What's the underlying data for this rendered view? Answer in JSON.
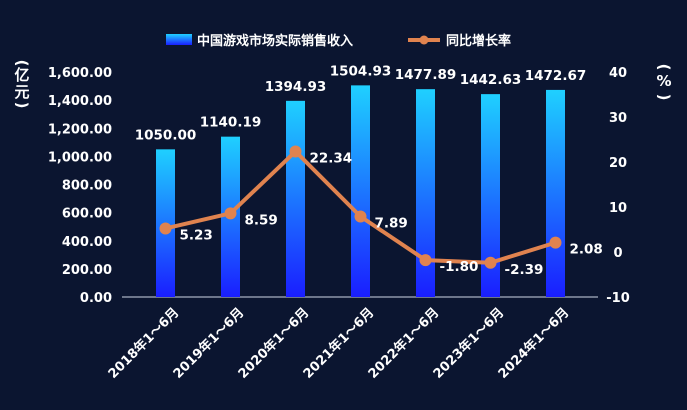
{
  "chart_data": {
    "type": "bar+line",
    "categories": [
      "2018年1～6月",
      "2019年1～6月",
      "2020年1～6月",
      "2021年1～6月",
      "2022年1～6月",
      "2023年1～6月",
      "2024年1～6月"
    ],
    "series": [
      {
        "name": "中国游戏市场实际销售收入",
        "type": "bar",
        "axis": "left",
        "values": [
          1050.0,
          1140.19,
          1394.93,
          1504.93,
          1477.89,
          1442.63,
          1472.67
        ],
        "labels": [
          "1050.00",
          "1140.19",
          "1394.93",
          "1504.93",
          "1477.89",
          "1442.63",
          "1472.67"
        ]
      },
      {
        "name": "同比增长率",
        "type": "line",
        "axis": "right",
        "values": [
          5.23,
          8.59,
          22.34,
          7.89,
          -1.8,
          -2.39,
          2.08
        ],
        "labels": [
          "5.23",
          "8.59",
          "22.34",
          "7.89",
          "-1.80",
          "-2.39",
          "2.08"
        ]
      }
    ],
    "y_left": {
      "label": "亿元",
      "label_chars": [
        "(",
        "亿",
        "元",
        ")"
      ],
      "ylim": [
        0,
        1600
      ],
      "ticks": [
        "1,600.00",
        "1,400.00",
        "1,200.00",
        "1,000.00",
        "800.00",
        "600.00",
        "400.00",
        "200.00",
        "0.00"
      ],
      "tick_values": [
        1600,
        1400,
        1200,
        1000,
        800,
        600,
        400,
        200,
        0
      ]
    },
    "y_right": {
      "label": "%",
      "label_chars": [
        "(",
        "%",
        ")"
      ],
      "ylim": [
        -10,
        40
      ],
      "ticks": [
        "40",
        "30",
        "20",
        "10",
        "0",
        "-10"
      ],
      "tick_values": [
        40,
        30,
        20,
        10,
        0,
        -10
      ]
    },
    "legend": {
      "placement": "top"
    },
    "grid": false,
    "colors": {
      "background": "#0b1530",
      "bar_top": "#1fd0ff",
      "bar_bottom": "#1a1eff",
      "line": "#e0834f",
      "text": "#ffffff"
    }
  }
}
